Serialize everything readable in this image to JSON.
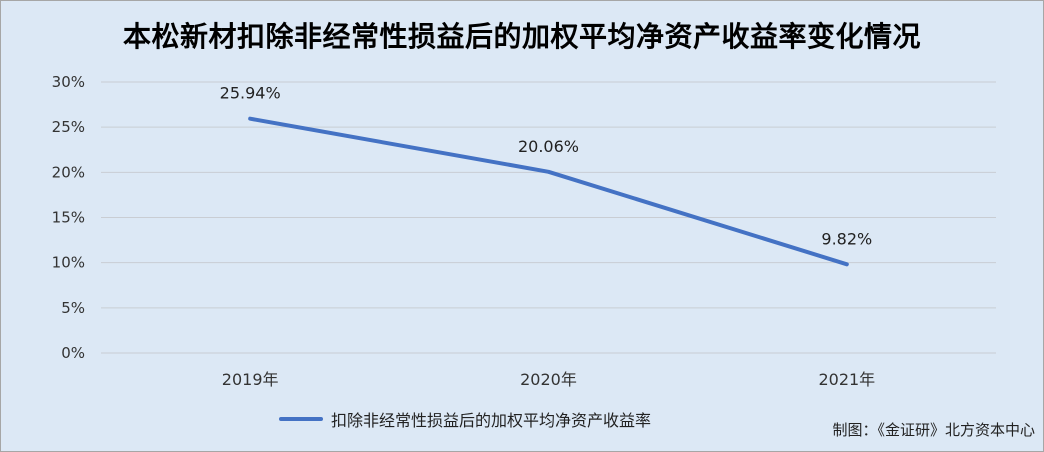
{
  "chart_data": {
    "type": "line",
    "title": "本松新材扣除非经常性损益后的加权平均净资产收益率变化情况",
    "categories": [
      "2019年",
      "2020年",
      "2021年"
    ],
    "series": [
      {
        "name": "扣除非经常性损益后的加权平均净资产收益率",
        "values": [
          25.94,
          20.06,
          9.82
        ],
        "labels": [
          "25.94%",
          "20.06%",
          "9.82%"
        ],
        "color": "#4472c4"
      }
    ],
    "y_ticks": [
      "0%",
      "5%",
      "10%",
      "15%",
      "20%",
      "25%",
      "30%"
    ],
    "ylim": [
      0,
      30
    ],
    "xlabel": "",
    "ylabel": "",
    "grid": true,
    "legend_position": "bottom"
  },
  "footer": {
    "source": "制图：《金证研》北方资本中心"
  }
}
